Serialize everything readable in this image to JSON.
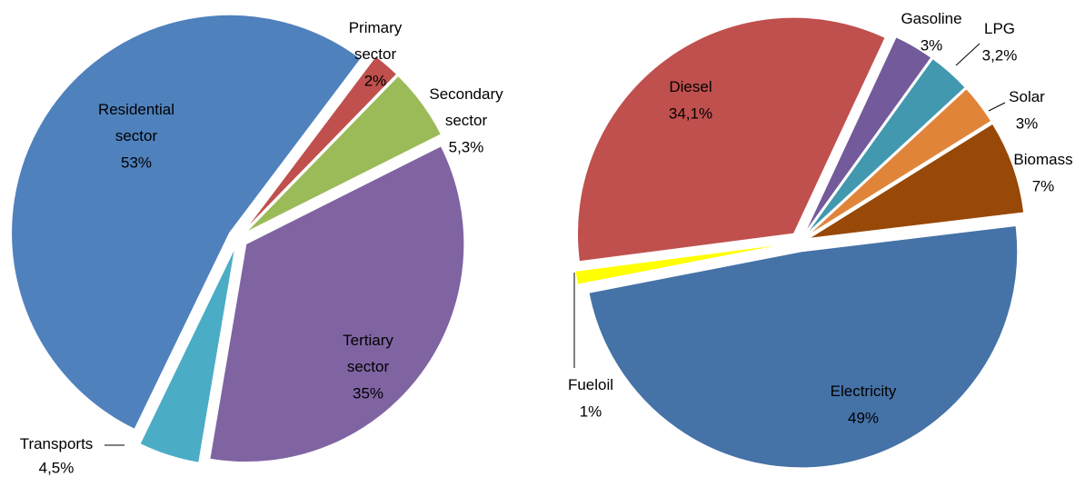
{
  "chart_data": [
    {
      "type": "pie",
      "categories": [
        "Primary sector",
        "Secondary sector",
        "Tertiary sector",
        "Transports",
        "Residential sector"
      ],
      "values": [
        2,
        5.3,
        35,
        4.5,
        53
      ],
      "value_labels": [
        "2%",
        "5,3%",
        "35%",
        "4,5%",
        "53%"
      ],
      "colors": [
        "#c0504d",
        "#9bbb59",
        "#8064a2",
        "#4bacc6",
        "#4f81bd"
      ]
    },
    {
      "type": "pie",
      "categories": [
        "Gasoline",
        "LPG",
        "Solar",
        "Biomass",
        "Electricity",
        "Fueloil",
        "Diesel"
      ],
      "values": [
        3,
        3.2,
        3,
        7,
        49,
        1,
        34.1
      ],
      "value_labels": [
        "3%",
        "3,2%",
        "3%",
        "7%",
        "49%",
        "1%",
        "34,1%"
      ],
      "colors": [
        "#735a9a",
        "#4198af",
        "#e0843a",
        "#984807",
        "#4572a7",
        "#ffff00",
        "#c0504d"
      ]
    }
  ]
}
